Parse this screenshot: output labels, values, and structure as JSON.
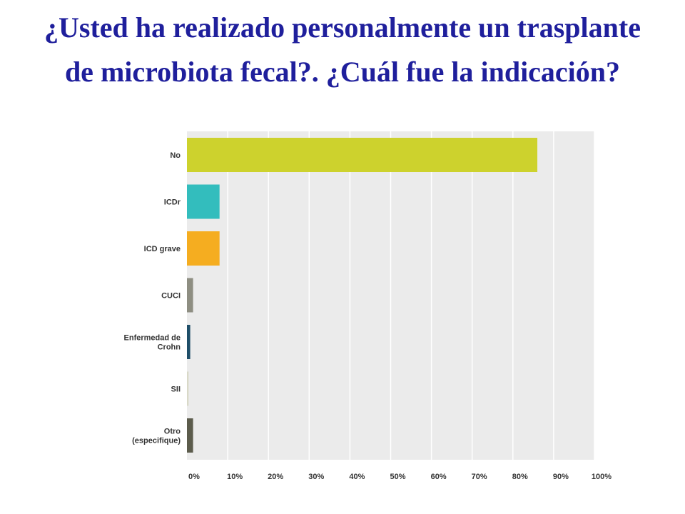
{
  "slide": {
    "title": "¿Usted ha realizado personalmente un trasplante de microbiota fecal?. ¿Cuál fue la indicación?"
  },
  "colors": {
    "plot_background": "#ebebeb",
    "grid": "#ffffff",
    "axis_text": "#333333",
    "title": "#1f1f9c"
  },
  "chart_data": {
    "type": "bar",
    "orientation": "horizontal",
    "title": "",
    "xlabel": "",
    "ylabel": "",
    "categories": [
      [
        "No"
      ],
      [
        "ICDr"
      ],
      [
        "ICD grave"
      ],
      [
        "CUCI"
      ],
      [
        "Enfermedad de",
        "Crohn"
      ],
      [
        "SII"
      ],
      [
        "Otro",
        "(especifique)"
      ]
    ],
    "values": [
      86,
      8,
      8,
      1.5,
      0.8,
      0.4,
      1.5
    ],
    "bar_colors": [
      "#cdd22d",
      "#33bdbd",
      "#f5ad20",
      "#8e8e82",
      "#1e4e68",
      "#d9d9c8",
      "#5c5c4c"
    ],
    "xlim": [
      0,
      100
    ],
    "x_tick_labels": [
      "0%",
      "10%",
      "20%",
      "30%",
      "40%",
      "50%",
      "60%",
      "70%",
      "80%",
      "90%",
      "100%"
    ],
    "grid": true,
    "legend": "none"
  }
}
